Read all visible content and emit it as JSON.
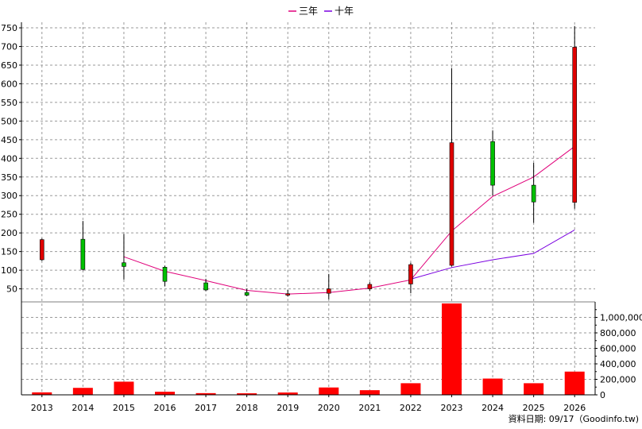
{
  "chart_data": {
    "type": "candlestick+bar",
    "legend": [
      {
        "name": "三年",
        "color": "#e0007a"
      },
      {
        "name": "十年",
        "color": "#7a00e0"
      }
    ],
    "categories": [
      "2013",
      "2014",
      "2015",
      "2016",
      "2017",
      "2018",
      "2019",
      "2020",
      "2021",
      "2022",
      "2023",
      "2024",
      "2025",
      "2026"
    ],
    "price_axis": {
      "ticks": [
        50,
        100,
        150,
        200,
        250,
        300,
        350,
        400,
        450,
        500,
        550,
        600,
        650,
        700,
        750
      ],
      "ylim": [
        15,
        765
      ]
    },
    "volume_axis": {
      "ticks": [
        0,
        200000,
        400000,
        600000,
        800000,
        1000000
      ],
      "tick_labels": [
        "0",
        "200,000",
        "400,000",
        "600,000",
        "800,000",
        "1,000,000"
      ],
      "ylim": [
        0,
        1200000
      ]
    },
    "candles": [
      {
        "year": "2013",
        "open": 128,
        "close": 182,
        "high": 185,
        "low": 125,
        "color": "#e00000"
      },
      {
        "year": "2014",
        "open": 102,
        "close": 183,
        "high": 232,
        "low": 100,
        "color": "#00c000"
      },
      {
        "year": "2015",
        "open": 110,
        "close": 120,
        "high": 197,
        "low": 75,
        "color": "#00c000"
      },
      {
        "year": "2016",
        "open": 70,
        "close": 108,
        "high": 112,
        "low": 57,
        "color": "#00c000"
      },
      {
        "year": "2017",
        "open": 47,
        "close": 66,
        "high": 77,
        "low": 44,
        "color": "#00c000"
      },
      {
        "year": "2018",
        "open": 33,
        "close": 40,
        "high": 50,
        "low": 30,
        "color": "#00c000"
      },
      {
        "year": "2019",
        "open": 33,
        "close": 37,
        "high": 47,
        "low": 29,
        "color": "#e00000"
      },
      {
        "year": "2020",
        "open": 38,
        "close": 50,
        "high": 90,
        "low": 22,
        "color": "#e00000"
      },
      {
        "year": "2021",
        "open": 50,
        "close": 62,
        "high": 68,
        "low": 45,
        "color": "#e00000"
      },
      {
        "year": "2022",
        "open": 63,
        "close": 115,
        "high": 120,
        "low": 38,
        "color": "#e00000"
      },
      {
        "year": "2023",
        "open": 113,
        "close": 442,
        "high": 642,
        "low": 110,
        "color": "#e00000"
      },
      {
        "year": "2024",
        "open": 328,
        "close": 445,
        "high": 475,
        "low": 300,
        "color": "#00c000"
      },
      {
        "year": "2025",
        "open": 283,
        "close": 328,
        "high": 388,
        "low": 227,
        "color": "#00c000"
      },
      {
        "year": "2026",
        "open": 282,
        "close": 698,
        "high": 755,
        "low": 265,
        "color": "#e00000"
      }
    ],
    "series": [
      {
        "name": "三年",
        "x": [
          "2015",
          "2016",
          "2017",
          "2018",
          "2019",
          "2020",
          "2021",
          "2022",
          "2023",
          "2024",
          "2025",
          "2026"
        ],
        "values": [
          136,
          97,
          72,
          46,
          36,
          40,
          52,
          74,
          205,
          298,
          350,
          432
        ]
      },
      {
        "name": "十年",
        "x": [
          "2022",
          "2023",
          "2024",
          "2025",
          "2026"
        ],
        "values": [
          76,
          107,
          128,
          145,
          208
        ]
      }
    ],
    "volume": [
      32000,
      90000,
      170000,
      40000,
      22000,
      20000,
      30000,
      95000,
      60000,
      150000,
      1180000,
      210000,
      150000,
      300000
    ],
    "volume_color": "#ff0000",
    "grid": true,
    "source_text": "資料日期: 09/17（Goodinfo.tw)"
  }
}
